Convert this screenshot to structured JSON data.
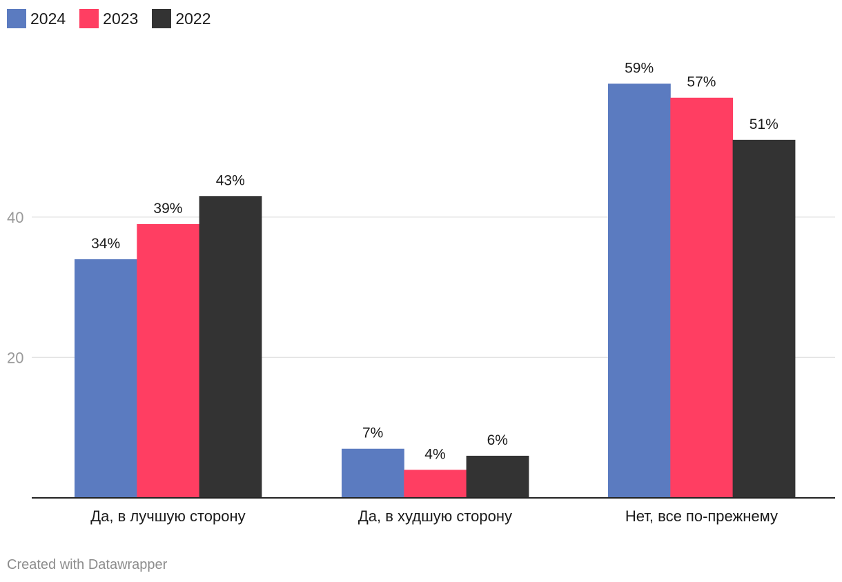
{
  "chart_data": {
    "type": "bar",
    "categories": [
      "Да, в лучшую сторону",
      "Да, в худшую сторону",
      "Нет, все по-прежнему"
    ],
    "series": [
      {
        "name": "2024",
        "values": [
          34,
          7,
          59
        ],
        "color": "#5b7bc0"
      },
      {
        "name": "2023",
        "values": [
          39,
          4,
          57
        ],
        "color": "#ff3e62"
      },
      {
        "name": "2022",
        "values": [
          43,
          6,
          51
        ],
        "color": "#333333"
      }
    ],
    "value_suffix": "%",
    "yticks": [
      20,
      40
    ],
    "ylim": [
      0,
      60
    ],
    "grid": true,
    "legend": "top-left"
  },
  "footer": {
    "credit": "Created with Datawrapper"
  }
}
